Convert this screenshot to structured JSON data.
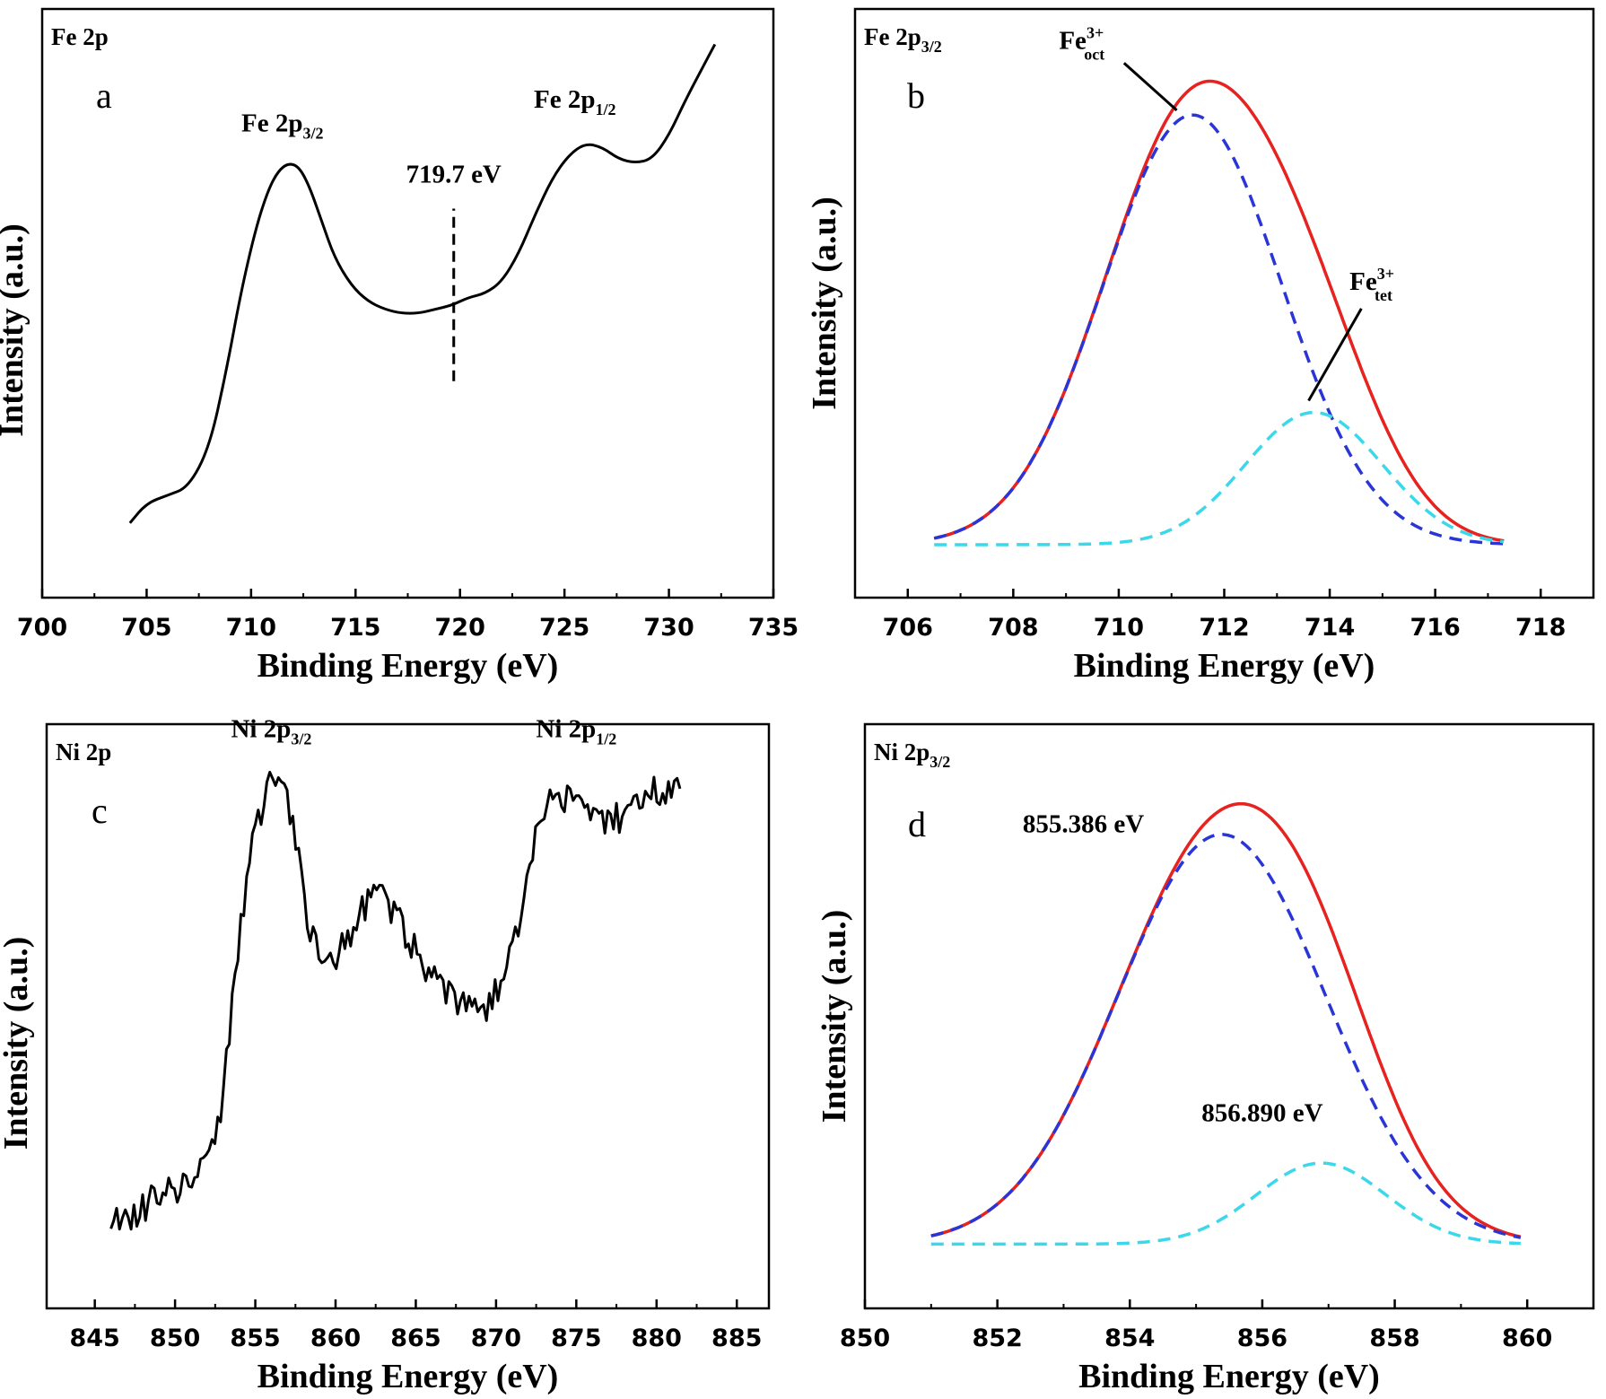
{
  "colors": {
    "total": "#000000",
    "envelope": "#e8221e",
    "component1": "#2a35d6",
    "component2": "#3ad8ea"
  },
  "chart_data": [
    {
      "id": "a",
      "type": "line",
      "title": "Fe 2p",
      "panel_label": "a",
      "xlabel": "Binding Energy (eV)",
      "ylabel": "Intensity (a.u.)",
      "xlim": [
        700,
        735
      ],
      "xticks": [
        "700",
        "705",
        "710",
        "715",
        "720",
        "725",
        "730",
        "735"
      ],
      "series": [
        {
          "style": "total",
          "x": [
            704.2,
            705,
            706,
            707,
            708,
            708.8,
            709.5,
            710.2,
            710.8,
            711.3,
            711.8,
            712.3,
            712.8,
            713.4,
            714,
            714.8,
            715.6,
            716.4,
            717.2,
            718,
            718.8,
            719.6,
            720.4,
            721.2,
            722,
            722.8,
            723.6,
            724.4,
            725.2,
            726,
            726.8,
            727.6,
            728.4,
            729.2,
            730,
            730.8,
            731.6,
            732.2
          ],
          "y": [
            0.04,
            0.09,
            0.11,
            0.13,
            0.23,
            0.42,
            0.62,
            0.78,
            0.88,
            0.93,
            0.95,
            0.94,
            0.89,
            0.8,
            0.71,
            0.64,
            0.6,
            0.58,
            0.57,
            0.57,
            0.58,
            0.59,
            0.61,
            0.62,
            0.65,
            0.72,
            0.82,
            0.91,
            0.97,
            1.0,
            0.99,
            0.96,
            0.95,
            0.96,
            1.02,
            1.11,
            1.19,
            1.25
          ]
        }
      ],
      "annotations": [
        {
          "text": "Fe 2p",
          "sub": "3/2",
          "x": 711.5,
          "y": 1.03
        },
        {
          "text": "Fe 2p",
          "sub": "1/2",
          "x": 725.5,
          "y": 1.09
        },
        {
          "text": "719.7 eV",
          "x": 719.7,
          "y": 0.9
        }
      ],
      "marker_line": {
        "x": 719.7,
        "y_from": 0.58,
        "y_to": 0.88
      }
    },
    {
      "id": "b",
      "type": "line",
      "title": "Fe 2p",
      "title_sub": "3/2",
      "panel_label": "b",
      "xlabel": "Binding Energy (eV)",
      "ylabel": "Intensity (a.u.)",
      "xlim": [
        705,
        719
      ],
      "xticks": [
        "706",
        "708",
        "710",
        "712",
        "714",
        "716",
        "718"
      ],
      "series": [
        {
          "style": "total",
          "gauss": [
            [
              711.4,
              1.69,
              0.91
            ],
            [
              713.7,
              1.3,
              0.28
            ]
          ],
          "xrange": [
            706.5,
            717.3
          ]
        },
        {
          "style": "envelope",
          "gauss": [
            [
              711.4,
              1.69,
              0.91
            ],
            [
              713.7,
              1.3,
              0.28
            ]
          ],
          "xrange": [
            706.5,
            717.3
          ]
        },
        {
          "style": "component1",
          "gauss": [
            [
              711.4,
              1.69,
              0.91
            ]
          ],
          "xrange": [
            706.5,
            717.3
          ]
        },
        {
          "style": "component2",
          "gauss": [
            [
              713.7,
              1.3,
              0.28
            ]
          ],
          "xrange": [
            706.5,
            717.3
          ]
        }
      ],
      "annotations": [
        {
          "text": "Fe",
          "sup": "3+",
          "sub": "oct",
          "x": 709.3,
          "y": 1.05
        },
        {
          "text": "Fe",
          "sup": "3+",
          "sub": "tet",
          "x": 714.8,
          "y": 0.54
        }
      ]
    },
    {
      "id": "c",
      "type": "line",
      "title": "Ni 2p",
      "panel_label": "c",
      "xlabel": "Binding Energy (eV)",
      "ylabel": "Intensity (a.u.)",
      "xlim": [
        842,
        887
      ],
      "xticks": [
        "845",
        "850",
        "855",
        "860",
        "865",
        "870",
        "875",
        "880",
        "885"
      ],
      "series": [
        {
          "style": "total",
          "x": [
            846,
            848,
            850,
            851,
            852,
            852.8,
            853.5,
            854.2,
            855,
            855.6,
            856.2,
            856.8,
            857.5,
            858.2,
            859,
            860,
            861,
            862,
            862.8,
            863.5,
            864.5,
            865.5,
            866.5,
            867.5,
            868.5,
            869.5,
            870.5,
            871.5,
            872.3,
            873,
            874,
            875,
            876,
            877,
            878,
            879,
            880,
            881,
            881.6
          ],
          "y": [
            0.06,
            0.1,
            0.14,
            0.16,
            0.19,
            0.27,
            0.5,
            0.72,
            0.87,
            0.96,
            0.99,
            0.97,
            0.85,
            0.7,
            0.63,
            0.62,
            0.66,
            0.74,
            0.76,
            0.71,
            0.66,
            0.6,
            0.56,
            0.53,
            0.51,
            0.52,
            0.57,
            0.68,
            0.83,
            0.92,
            0.95,
            0.93,
            0.91,
            0.89,
            0.91,
            0.93,
            0.96,
            0.97,
            0.96
          ]
        }
      ],
      "annotations": [
        {
          "text": "Ni 2p",
          "sub": "3/2",
          "x": 856,
          "y": 1.07
        },
        {
          "text": "Ni 2p",
          "sub": "1/2",
          "x": 875,
          "y": 1.07
        }
      ]
    },
    {
      "id": "d",
      "type": "line",
      "title": "Ni 2p",
      "title_sub": "3/2",
      "panel_label": "d",
      "xlabel": "Binding Energy (eV)",
      "ylabel": "Intensity (a.u.)",
      "xlim": [
        850,
        861
      ],
      "xticks": [
        "850",
        "852",
        "854",
        "856",
        "858",
        "860"
      ],
      "series": [
        {
          "style": "total",
          "gauss": [
            [
              855.386,
              1.57,
              0.935
            ],
            [
              856.89,
              0.98,
              0.185
            ]
          ],
          "xrange": [
            851,
            859.9
          ]
        },
        {
          "style": "envelope",
          "gauss": [
            [
              855.386,
              1.57,
              0.935
            ],
            [
              856.89,
              0.98,
              0.185
            ]
          ],
          "xrange": [
            851,
            859.9
          ]
        },
        {
          "style": "component1",
          "gauss": [
            [
              855.386,
              1.57,
              0.935
            ]
          ],
          "xrange": [
            851,
            859.9
          ]
        },
        {
          "style": "component2",
          "gauss": [
            [
              856.89,
              0.98,
              0.185
            ]
          ],
          "xrange": [
            851,
            859.9
          ]
        }
      ],
      "annotations": [
        {
          "text": "855.386 eV",
          "x": 853.3,
          "y": 0.94
        },
        {
          "text": "856.890 eV",
          "x": 856.0,
          "y": 0.28
        }
      ]
    }
  ]
}
